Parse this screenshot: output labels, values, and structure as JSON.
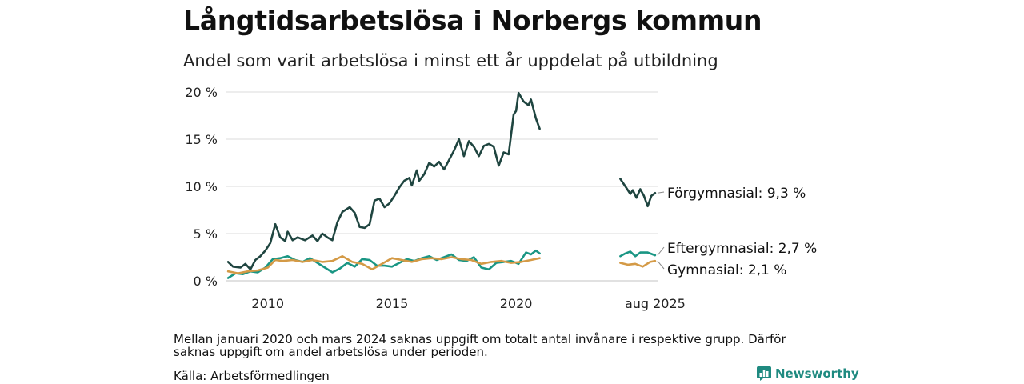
{
  "header": {
    "title": "Långtidsarbetslösa i Norbergs kommun",
    "subtitle": "Andel som varit arbetslösa i minst ett år uppdelat på utbildning"
  },
  "footer": {
    "note": "Mellan januari 2020 och mars 2024 saknas uppgift om totalt antal invånare i respektive grupp. Därför saknas uppgift om andel arbetslösa under perioden.",
    "source": "Källa: Arbetsförmedlingen",
    "brand": "Newsworthy"
  },
  "chart_data": {
    "type": "line",
    "title": "Långtidsarbetslösa i Norbergs kommun",
    "subtitle": "Andel som varit arbetslösa i minst ett år uppdelat på utbildning",
    "xlabel": "",
    "ylabel": "",
    "ylim": [
      0,
      20
    ],
    "xlim": [
      2008.3,
      2025.7
    ],
    "yticks": [
      0,
      5,
      10,
      15,
      20
    ],
    "ytick_labels": [
      "0 %",
      "5 %",
      "10 %",
      "15 %",
      "20 %"
    ],
    "xticks": [
      2010,
      2015,
      2020,
      2025.6
    ],
    "xtick_labels": [
      "2010",
      "2015",
      "2020",
      "aug 2025"
    ],
    "grid": true,
    "legend": "end-of-line labels",
    "series": [
      {
        "name": "Förgymnasial",
        "end_label": "Förgymnasial: 9,3 %",
        "color": "#1f4540",
        "segments": [
          [
            [
              2008.4,
              2.0
            ],
            [
              2008.6,
              1.5
            ],
            [
              2008.9,
              1.4
            ],
            [
              2009.1,
              1.8
            ],
            [
              2009.3,
              1.2
            ],
            [
              2009.5,
              2.2
            ],
            [
              2009.7,
              2.6
            ],
            [
              2009.9,
              3.2
            ],
            [
              2010.1,
              4.0
            ],
            [
              2010.2,
              5.0
            ],
            [
              2010.3,
              6.0
            ],
            [
              2010.5,
              4.6
            ],
            [
              2010.7,
              4.2
            ],
            [
              2010.8,
              5.2
            ],
            [
              2011.0,
              4.3
            ],
            [
              2011.2,
              4.6
            ],
            [
              2011.5,
              4.3
            ],
            [
              2011.8,
              4.8
            ],
            [
              2012.0,
              4.2
            ],
            [
              2012.2,
              5.0
            ],
            [
              2012.4,
              4.6
            ],
            [
              2012.6,
              4.3
            ],
            [
              2012.8,
              6.2
            ],
            [
              2013.0,
              7.3
            ],
            [
              2013.3,
              7.8
            ],
            [
              2013.5,
              7.2
            ],
            [
              2013.7,
              5.7
            ],
            [
              2013.9,
              5.6
            ],
            [
              2014.1,
              6.0
            ],
            [
              2014.3,
              8.5
            ],
            [
              2014.5,
              8.7
            ],
            [
              2014.7,
              7.8
            ],
            [
              2014.9,
              8.2
            ],
            [
              2015.1,
              9.0
            ],
            [
              2015.3,
              9.9
            ],
            [
              2015.5,
              10.6
            ],
            [
              2015.7,
              10.9
            ],
            [
              2015.8,
              10.1
            ],
            [
              2016.0,
              11.7
            ],
            [
              2016.1,
              10.6
            ],
            [
              2016.3,
              11.3
            ],
            [
              2016.5,
              12.5
            ],
            [
              2016.7,
              12.1
            ],
            [
              2016.9,
              12.6
            ],
            [
              2017.1,
              11.8
            ],
            [
              2017.3,
              12.8
            ],
            [
              2017.5,
              13.8
            ],
            [
              2017.7,
              15.0
            ],
            [
              2017.9,
              13.2
            ],
            [
              2018.1,
              14.8
            ],
            [
              2018.3,
              14.2
            ],
            [
              2018.5,
              13.2
            ],
            [
              2018.7,
              14.3
            ],
            [
              2018.9,
              14.5
            ],
            [
              2019.1,
              14.2
            ],
            [
              2019.3,
              12.2
            ],
            [
              2019.5,
              13.6
            ],
            [
              2019.7,
              13.4
            ],
            [
              2019.9,
              17.6
            ],
            [
              2020.0,
              18.0
            ],
            [
              2020.1,
              19.9
            ],
            [
              2020.3,
              19.0
            ],
            [
              2020.5,
              18.6
            ],
            [
              2020.6,
              19.2
            ],
            [
              2020.8,
              17.2
            ],
            [
              2020.95,
              16.1
            ]
          ],
          [
            [
              2024.2,
              10.8
            ],
            [
              2024.4,
              10.0
            ],
            [
              2024.6,
              9.2
            ],
            [
              2024.7,
              9.6
            ],
            [
              2024.85,
              8.8
            ],
            [
              2025.0,
              9.7
            ],
            [
              2025.15,
              9.0
            ],
            [
              2025.3,
              7.9
            ],
            [
              2025.45,
              9.0
            ],
            [
              2025.6,
              9.3
            ]
          ]
        ]
      },
      {
        "name": "Eftergymnasial",
        "end_label": "Eftergymnasial: 2,7 %",
        "color": "#1a9684",
        "segments": [
          [
            [
              2008.4,
              0.3
            ],
            [
              2008.7,
              0.8
            ],
            [
              2009.0,
              0.7
            ],
            [
              2009.3,
              1.0
            ],
            [
              2009.6,
              0.9
            ],
            [
              2009.9,
              1.4
            ],
            [
              2010.2,
              2.3
            ],
            [
              2010.5,
              2.4
            ],
            [
              2010.8,
              2.6
            ],
            [
              2011.1,
              2.2
            ],
            [
              2011.4,
              2.0
            ],
            [
              2011.7,
              2.4
            ],
            [
              2012.0,
              1.9
            ],
            [
              2012.3,
              1.4
            ],
            [
              2012.6,
              0.9
            ],
            [
              2012.9,
              1.3
            ],
            [
              2013.2,
              1.9
            ],
            [
              2013.5,
              1.5
            ],
            [
              2013.8,
              2.3
            ],
            [
              2014.1,
              2.2
            ],
            [
              2014.4,
              1.6
            ],
            [
              2014.7,
              1.6
            ],
            [
              2015.0,
              1.5
            ],
            [
              2015.3,
              1.9
            ],
            [
              2015.6,
              2.3
            ],
            [
              2015.9,
              2.1
            ],
            [
              2016.2,
              2.4
            ],
            [
              2016.5,
              2.6
            ],
            [
              2016.8,
              2.2
            ],
            [
              2017.1,
              2.5
            ],
            [
              2017.4,
              2.8
            ],
            [
              2017.7,
              2.2
            ],
            [
              2018.0,
              2.1
            ],
            [
              2018.3,
              2.5
            ],
            [
              2018.6,
              1.4
            ],
            [
              2018.9,
              1.2
            ],
            [
              2019.2,
              1.9
            ],
            [
              2019.5,
              2.0
            ],
            [
              2019.8,
              2.1
            ],
            [
              2020.1,
              1.8
            ],
            [
              2020.4,
              3.0
            ],
            [
              2020.6,
              2.8
            ],
            [
              2020.8,
              3.2
            ],
            [
              2020.95,
              2.9
            ]
          ],
          [
            [
              2024.2,
              2.6
            ],
            [
              2024.4,
              2.9
            ],
            [
              2024.6,
              3.1
            ],
            [
              2024.8,
              2.6
            ],
            [
              2025.0,
              3.0
            ],
            [
              2025.3,
              3.0
            ],
            [
              2025.6,
              2.7
            ]
          ]
        ]
      },
      {
        "name": "Gymnasial",
        "end_label": "Gymnasial: 2,1 %",
        "color": "#d49a46",
        "segments": [
          [
            [
              2008.4,
              1.0
            ],
            [
              2008.8,
              0.8
            ],
            [
              2009.2,
              1.0
            ],
            [
              2009.6,
              1.1
            ],
            [
              2010.0,
              1.4
            ],
            [
              2010.3,
              2.2
            ],
            [
              2010.6,
              2.1
            ],
            [
              2011.0,
              2.2
            ],
            [
              2011.4,
              2.0
            ],
            [
              2011.8,
              2.2
            ],
            [
              2012.2,
              2.0
            ],
            [
              2012.6,
              2.1
            ],
            [
              2013.0,
              2.6
            ],
            [
              2013.4,
              2.0
            ],
            [
              2013.8,
              1.8
            ],
            [
              2014.2,
              1.2
            ],
            [
              2014.6,
              1.8
            ],
            [
              2015.0,
              2.4
            ],
            [
              2015.4,
              2.2
            ],
            [
              2015.8,
              2.0
            ],
            [
              2016.2,
              2.3
            ],
            [
              2016.6,
              2.4
            ],
            [
              2017.0,
              2.3
            ],
            [
              2017.4,
              2.5
            ],
            [
              2017.8,
              2.3
            ],
            [
              2018.2,
              2.2
            ],
            [
              2018.6,
              1.8
            ],
            [
              2019.0,
              2.0
            ],
            [
              2019.4,
              2.1
            ],
            [
              2019.8,
              1.9
            ],
            [
              2020.2,
              2.0
            ],
            [
              2020.6,
              2.2
            ],
            [
              2020.95,
              2.4
            ]
          ],
          [
            [
              2024.2,
              1.9
            ],
            [
              2024.5,
              1.7
            ],
            [
              2024.8,
              1.8
            ],
            [
              2025.1,
              1.5
            ],
            [
              2025.4,
              2.0
            ],
            [
              2025.6,
              2.1
            ]
          ]
        ]
      }
    ]
  }
}
